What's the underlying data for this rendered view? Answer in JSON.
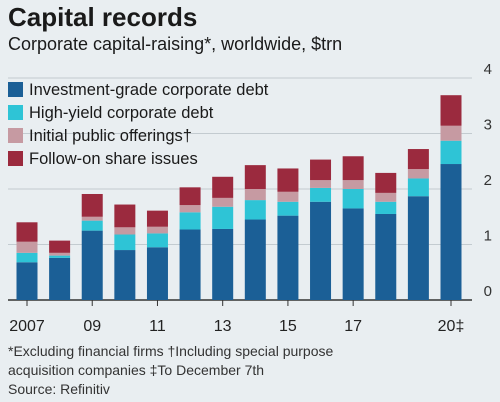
{
  "chart_data": {
    "type": "bar",
    "stacked": true,
    "title": "Capital records",
    "subtitle": "Corporate capital-raising*, worldwide, $trn",
    "categories": [
      "2007",
      "2008",
      "2009",
      "2010",
      "2011",
      "2012",
      "2013",
      "2014",
      "2015",
      "2016",
      "2017",
      "2018",
      "2019",
      "2020"
    ],
    "x_tick_labels": [
      {
        "category": "2007",
        "label": "2007"
      },
      {
        "category": "2009",
        "label": "09"
      },
      {
        "category": "2011",
        "label": "11"
      },
      {
        "category": "2013",
        "label": "13"
      },
      {
        "category": "2015",
        "label": "15"
      },
      {
        "category": "2017",
        "label": "17"
      },
      {
        "category": "2020",
        "label": "20‡"
      }
    ],
    "y_ticks": [
      0,
      1,
      2,
      3,
      4
    ],
    "ylim": [
      0,
      4
    ],
    "grid": true,
    "legend_position": "top-left",
    "series": [
      {
        "name": "Investment-grade corporate debt",
        "color": "#1b5f96",
        "values": [
          0.68,
          0.76,
          1.25,
          0.9,
          0.95,
          1.27,
          1.28,
          1.45,
          1.52,
          1.77,
          1.65,
          1.55,
          1.87,
          2.45
        ]
      },
      {
        "name": "High-yield corporate debt",
        "color": "#2ec4d6",
        "values": [
          0.17,
          0.04,
          0.18,
          0.28,
          0.25,
          0.31,
          0.4,
          0.35,
          0.25,
          0.25,
          0.35,
          0.22,
          0.32,
          0.42
        ]
      },
      {
        "name": "Initial public offerings†",
        "color": "#c69aa2",
        "values": [
          0.2,
          0.05,
          0.07,
          0.13,
          0.12,
          0.13,
          0.16,
          0.2,
          0.18,
          0.14,
          0.16,
          0.16,
          0.17,
          0.27
        ]
      },
      {
        "name": "Follow-on share issues",
        "color": "#9b2a3e",
        "values": [
          0.35,
          0.22,
          0.41,
          0.41,
          0.29,
          0.32,
          0.38,
          0.43,
          0.42,
          0.37,
          0.43,
          0.36,
          0.36,
          0.55
        ]
      }
    ]
  },
  "footnotes": {
    "line1": "*Excluding financial firms   †Including special purpose",
    "line2": "acquisition companies   ‡To December 7th",
    "source": "Source: Refinitiv"
  }
}
